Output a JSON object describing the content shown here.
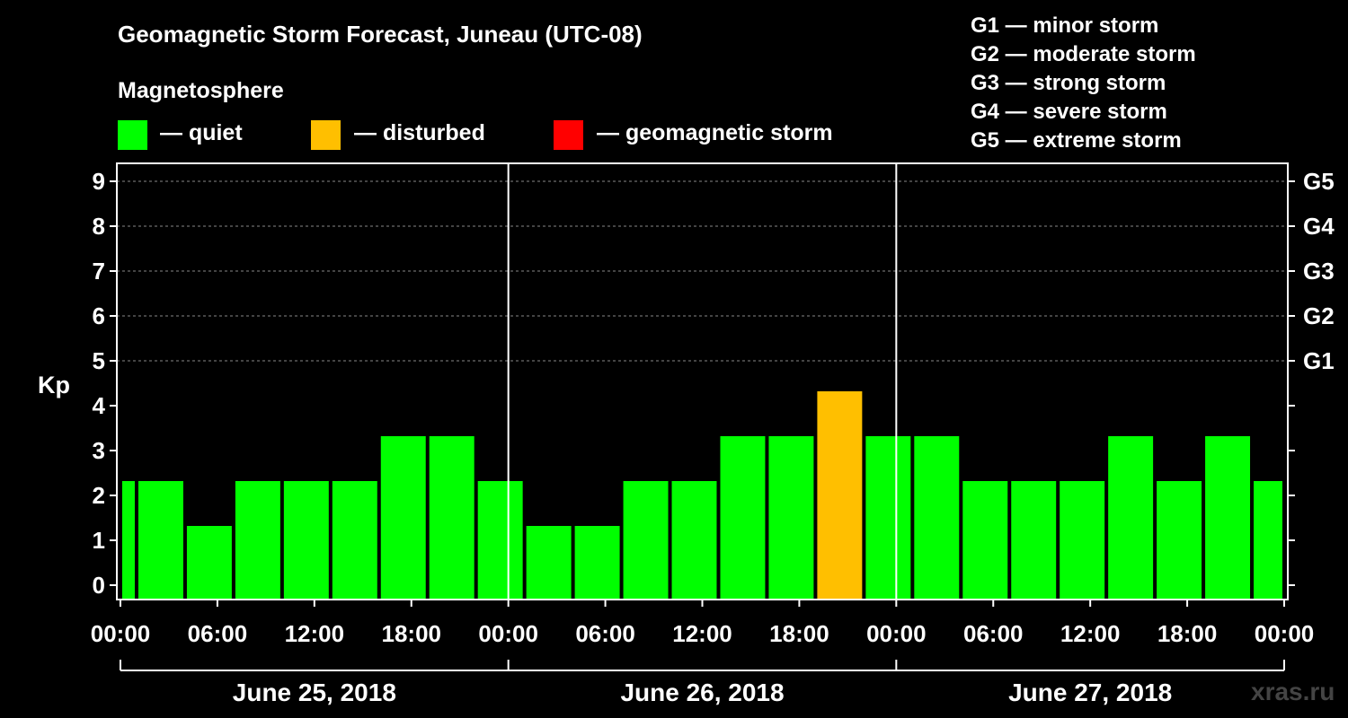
{
  "colors": {
    "quiet": "#00ff00",
    "disturbed": "#ffbf00",
    "storm": "#ff0000",
    "grid": "#888888",
    "background": "#000000"
  },
  "title": "Geomagnetic Storm Forecast, Juneau (UTC-08)",
  "magnetosphere": {
    "heading": "Magnetosphere",
    "legend": [
      {
        "key": "quiet",
        "label": "— quiet"
      },
      {
        "key": "disturbed",
        "label": "— disturbed"
      },
      {
        "key": "storm",
        "label": "— geomagnetic storm"
      }
    ]
  },
  "g_scale": [
    "G1 — minor storm",
    "G2 — moderate storm",
    "G3 — strong storm",
    "G4 — severe storm",
    "G5 — extreme storm"
  ],
  "watermark": "xras.ru",
  "chart_data": {
    "type": "bar",
    "title": "Geomagnetic Storm Forecast, Juneau (UTC-08)",
    "ylabel": "Kp",
    "ylim": [
      0,
      9
    ],
    "yticks": [
      0,
      1,
      2,
      3,
      4,
      5,
      6,
      7,
      8,
      9
    ],
    "y_right_labels": [
      {
        "kp": 5,
        "label": "G1"
      },
      {
        "kp": 6,
        "label": "G2"
      },
      {
        "kp": 7,
        "label": "G3"
      },
      {
        "kp": 8,
        "label": "G4"
      },
      {
        "kp": 9,
        "label": "G5"
      }
    ],
    "grid": true,
    "x_range_hours": [
      0,
      72
    ],
    "x_tick_labels": [
      "00:00",
      "06:00",
      "12:00",
      "18:00",
      "00:00",
      "06:00",
      "12:00",
      "18:00",
      "00:00",
      "06:00",
      "12:00",
      "18:00",
      "00:00"
    ],
    "dates": [
      "June 25, 2018",
      "June 26, 2018",
      "June 27, 2018"
    ],
    "bars": [
      {
        "start": 0,
        "end": 1,
        "kp": 2,
        "status": "quiet"
      },
      {
        "start": 1,
        "end": 4,
        "kp": 2,
        "status": "quiet"
      },
      {
        "start": 4,
        "end": 7,
        "kp": 1,
        "status": "quiet"
      },
      {
        "start": 7,
        "end": 10,
        "kp": 2,
        "status": "quiet"
      },
      {
        "start": 10,
        "end": 13,
        "kp": 2,
        "status": "quiet"
      },
      {
        "start": 13,
        "end": 16,
        "kp": 2,
        "status": "quiet"
      },
      {
        "start": 16,
        "end": 19,
        "kp": 3,
        "status": "quiet"
      },
      {
        "start": 19,
        "end": 22,
        "kp": 3,
        "status": "quiet"
      },
      {
        "start": 22,
        "end": 25,
        "kp": 2,
        "status": "quiet"
      },
      {
        "start": 25,
        "end": 28,
        "kp": 1,
        "status": "quiet"
      },
      {
        "start": 28,
        "end": 31,
        "kp": 1,
        "status": "quiet"
      },
      {
        "start": 31,
        "end": 34,
        "kp": 2,
        "status": "quiet"
      },
      {
        "start": 34,
        "end": 37,
        "kp": 2,
        "status": "quiet"
      },
      {
        "start": 37,
        "end": 40,
        "kp": 3,
        "status": "quiet"
      },
      {
        "start": 40,
        "end": 43,
        "kp": 3,
        "status": "quiet"
      },
      {
        "start": 43,
        "end": 46,
        "kp": 4,
        "status": "disturbed"
      },
      {
        "start": 46,
        "end": 49,
        "kp": 3,
        "status": "quiet"
      },
      {
        "start": 49,
        "end": 52,
        "kp": 3,
        "status": "quiet"
      },
      {
        "start": 52,
        "end": 55,
        "kp": 2,
        "status": "quiet"
      },
      {
        "start": 55,
        "end": 58,
        "kp": 2,
        "status": "quiet"
      },
      {
        "start": 58,
        "end": 61,
        "kp": 2,
        "status": "quiet"
      },
      {
        "start": 61,
        "end": 64,
        "kp": 3,
        "status": "quiet"
      },
      {
        "start": 64,
        "end": 67,
        "kp": 2,
        "status": "quiet"
      },
      {
        "start": 67,
        "end": 70,
        "kp": 3,
        "status": "quiet"
      },
      {
        "start": 70,
        "end": 72,
        "kp": 2,
        "status": "quiet"
      }
    ]
  }
}
